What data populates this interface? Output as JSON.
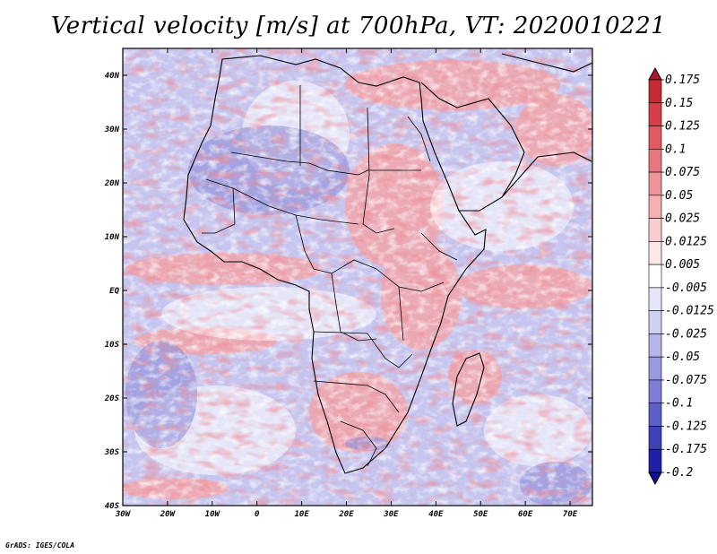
{
  "title": "Vertical velocity [m/s] at 700hPa, VT: 2020010221",
  "credit": "GrADS: IGES/COLA",
  "map": {
    "lon_range": [
      -30,
      75
    ],
    "lat_range": [
      -40,
      45
    ],
    "lat_ticks": [
      {
        "lat": 40,
        "label": "40N"
      },
      {
        "lat": 30,
        "label": "30N"
      },
      {
        "lat": 20,
        "label": "20N"
      },
      {
        "lat": 10,
        "label": "10N"
      },
      {
        "lat": 0,
        "label": "EQ"
      },
      {
        "lat": -10,
        "label": "10S"
      },
      {
        "lat": -20,
        "label": "20S"
      },
      {
        "lat": -30,
        "label": "30S"
      },
      {
        "lat": -40,
        "label": "40S"
      }
    ],
    "lon_ticks": [
      {
        "lon": -30,
        "label": "30W"
      },
      {
        "lon": -20,
        "label": "20W"
      },
      {
        "lon": -10,
        "label": "10W"
      },
      {
        "lon": 0,
        "label": "0"
      },
      {
        "lon": 10,
        "label": "10E"
      },
      {
        "lon": 20,
        "label": "20E"
      },
      {
        "lon": 30,
        "label": "30E"
      },
      {
        "lon": 40,
        "label": "40E"
      },
      {
        "lon": 50,
        "label": "50E"
      },
      {
        "lon": 60,
        "label": "60E"
      },
      {
        "lon": 70,
        "label": "70E"
      }
    ]
  },
  "colorbar": {
    "labels": [
      "0.175",
      "0.15",
      "0.125",
      "0.1",
      "0.075",
      "0.05",
      "0.025",
      "0.0125",
      "0.005",
      "-0.005",
      "-0.0125",
      "-0.025",
      "-0.05",
      "-0.075",
      "-0.1",
      "-0.125",
      "-0.175",
      "-0.2"
    ],
    "colors": [
      "#b2182b",
      "#c62a36",
      "#d53e4a",
      "#e05a63",
      "#e8787f",
      "#ef9499",
      "#f4b0b3",
      "#f8cdd0",
      "#fce6e7",
      "#ffffff",
      "#e6e6f8",
      "#cfcff2",
      "#b5b5ea",
      "#9999e0",
      "#7d7dd5",
      "#5f5fc8",
      "#4040b8",
      "#2020a6",
      "#10108f"
    ]
  }
}
